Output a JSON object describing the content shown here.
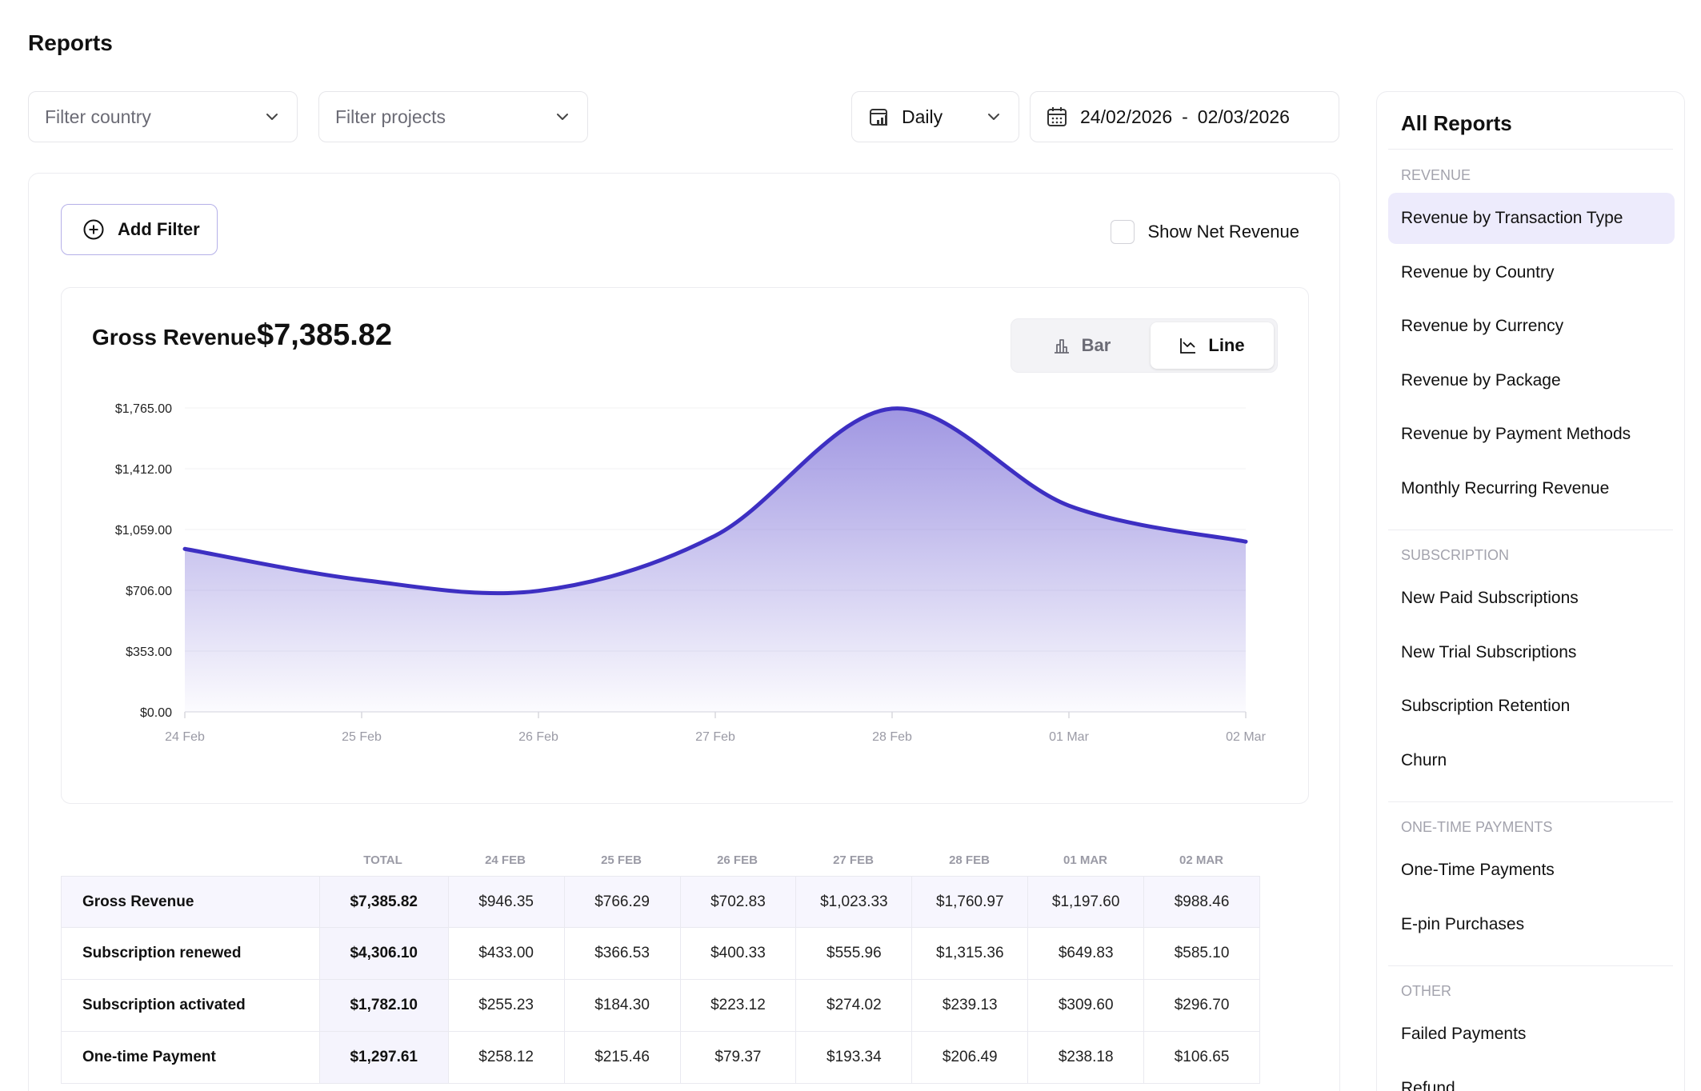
{
  "page": {
    "title": "Reports"
  },
  "filters": {
    "country_placeholder": "Filter country",
    "projects_placeholder": "Filter projects",
    "period": "Daily",
    "date_start": "24/02/2026",
    "date_sep": "-",
    "date_end": "02/03/2026"
  },
  "toolbar": {
    "add_filter": "Add Filter",
    "show_net_revenue": "Show Net Revenue"
  },
  "summary": {
    "label": "Gross Revenue",
    "value": "$7,385.82"
  },
  "chart_toggle": {
    "bar": "Bar",
    "line": "Line",
    "selected": "Line"
  },
  "colors": {
    "line": "#3d2fc2",
    "fill_top": "#8f84dd",
    "accent_bg": "#edebfc"
  },
  "chart_data": {
    "type": "area",
    "x": [
      "24 Feb",
      "25 Feb",
      "26 Feb",
      "27 Feb",
      "28 Feb",
      "01 Mar",
      "02 Mar"
    ],
    "series": [
      {
        "values": [
          946.35,
          766.29,
          702.83,
          1023.33,
          1760.97,
          1197.6,
          988.46
        ]
      }
    ],
    "y_ticks": [
      "$0.00",
      "$353.00",
      "$706.00",
      "$1,059.00",
      "$1,412.00",
      "$1,765.00"
    ],
    "ylim": [
      0,
      1765
    ],
    "grid": true
  },
  "table": {
    "columns": [
      "TOTAL",
      "24 FEB",
      "25 FEB",
      "26 FEB",
      "27 FEB",
      "28 FEB",
      "01 MAR",
      "02 MAR"
    ],
    "rows": [
      {
        "name": "Gross Revenue",
        "cells": [
          "$7,385.82",
          "$946.35",
          "$766.29",
          "$702.83",
          "$1,023.33",
          "$1,760.97",
          "$1,197.60",
          "$988.46"
        ]
      },
      {
        "name": "Subscription renewed",
        "cells": [
          "$4,306.10",
          "$433.00",
          "$366.53",
          "$400.33",
          "$555.96",
          "$1,315.36",
          "$649.83",
          "$585.10"
        ]
      },
      {
        "name": "Subscription activated",
        "cells": [
          "$1,782.10",
          "$255.23",
          "$184.30",
          "$223.12",
          "$274.02",
          "$239.13",
          "$309.60",
          "$296.70"
        ]
      },
      {
        "name": "One-time Payment",
        "cells": [
          "$1,297.61",
          "$258.12",
          "$215.46",
          "$79.37",
          "$193.34",
          "$206.49",
          "$238.18",
          "$106.65"
        ]
      }
    ]
  },
  "sidebar": {
    "title": "All Reports",
    "sections": [
      {
        "label": "REVENUE",
        "items": [
          "Revenue by Transaction Type",
          "Revenue by Country",
          "Revenue by Currency",
          "Revenue by Package",
          "Revenue by Payment Methods",
          "Monthly Recurring Revenue"
        ]
      },
      {
        "label": "SUBSCRIPTION",
        "items": [
          "New Paid Subscriptions",
          "New Trial Subscriptions",
          "Subscription Retention",
          "Churn"
        ]
      },
      {
        "label": "ONE-TIME PAYMENTS",
        "items": [
          "One-Time Payments",
          "E-pin Purchases"
        ]
      },
      {
        "label": "OTHER",
        "items": [
          "Failed Payments",
          "Refund"
        ]
      }
    ],
    "active_item": "Revenue by Transaction Type"
  }
}
